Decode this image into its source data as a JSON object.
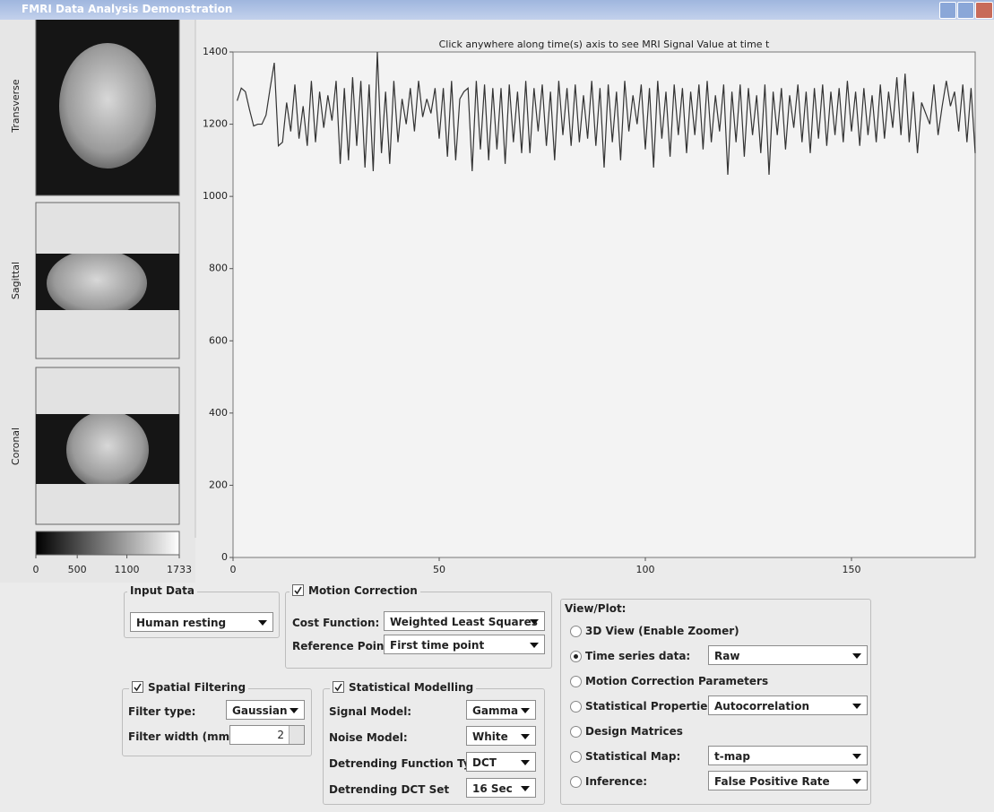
{
  "window": {
    "title": "FMRI Data Analysis Demonstration"
  },
  "views": [
    "Transverse",
    "Sagittal",
    "Coronal"
  ],
  "colorbar": {
    "lim": [
      0,
      1733
    ],
    "ticks": [
      0,
      500,
      1100,
      1733
    ]
  },
  "chart_data": {
    "type": "line",
    "title": "Click anywhere along time(s) axis to see MRI Signal Value at time t",
    "color": "#333333",
    "xlim": [
      0,
      180
    ],
    "xticks": [
      0,
      50,
      100,
      150
    ],
    "ylim": [
      0,
      1400
    ],
    "yticks": [
      0,
      200,
      400,
      600,
      800,
      1000,
      1200,
      1400
    ],
    "grid": false,
    "x": [
      1,
      2,
      3,
      4,
      5,
      6,
      7,
      8,
      9,
      10,
      11,
      12,
      13,
      14,
      15,
      16,
      17,
      18,
      19,
      20,
      21,
      22,
      23,
      24,
      25,
      26,
      27,
      28,
      29,
      30,
      31,
      32,
      33,
      34,
      35,
      36,
      37,
      38,
      39,
      40,
      41,
      42,
      43,
      44,
      45,
      46,
      47,
      48,
      49,
      50,
      51,
      52,
      53,
      54,
      55,
      56,
      57,
      58,
      59,
      60,
      61,
      62,
      63,
      64,
      65,
      66,
      67,
      68,
      69,
      70,
      71,
      72,
      73,
      74,
      75,
      76,
      77,
      78,
      79,
      80,
      81,
      82,
      83,
      84,
      85,
      86,
      87,
      88,
      89,
      90,
      91,
      92,
      93,
      94,
      95,
      96,
      97,
      98,
      99,
      100,
      101,
      102,
      103,
      104,
      105,
      106,
      107,
      108,
      109,
      110,
      111,
      112,
      113,
      114,
      115,
      116,
      117,
      118,
      119,
      120,
      121,
      122,
      123,
      124,
      125,
      126,
      127,
      128,
      129,
      130,
      131,
      132,
      133,
      134,
      135,
      136,
      137,
      138,
      139,
      140,
      141,
      142,
      143,
      144,
      145,
      146,
      147,
      148,
      149,
      150,
      151,
      152,
      153,
      154,
      155,
      156,
      157,
      158,
      159,
      160,
      161,
      162,
      163,
      164,
      165,
      166,
      167,
      168,
      169,
      170,
      171,
      172,
      173,
      174,
      175,
      176,
      177,
      178,
      179,
      180
    ],
    "values": [
      1265,
      1300,
      1290,
      1240,
      1195,
      1200,
      1200,
      1225,
      1300,
      1370,
      1140,
      1150,
      1260,
      1180,
      1310,
      1160,
      1250,
      1140,
      1320,
      1150,
      1290,
      1190,
      1280,
      1210,
      1320,
      1090,
      1300,
      1100,
      1330,
      1140,
      1320,
      1080,
      1310,
      1070,
      1400,
      1120,
      1290,
      1090,
      1320,
      1150,
      1270,
      1200,
      1300,
      1180,
      1320,
      1220,
      1270,
      1230,
      1300,
      1160,
      1300,
      1110,
      1320,
      1100,
      1270,
      1290,
      1300,
      1070,
      1320,
      1130,
      1310,
      1100,
      1300,
      1130,
      1300,
      1090,
      1310,
      1150,
      1290,
      1120,
      1320,
      1120,
      1300,
      1180,
      1310,
      1140,
      1290,
      1100,
      1320,
      1170,
      1300,
      1140,
      1310,
      1150,
      1280,
      1160,
      1320,
      1140,
      1300,
      1080,
      1310,
      1150,
      1290,
      1100,
      1320,
      1180,
      1280,
      1200,
      1310,
      1130,
      1300,
      1080,
      1320,
      1160,
      1290,
      1110,
      1310,
      1170,
      1300,
      1120,
      1290,
      1170,
      1310,
      1130,
      1320,
      1150,
      1280,
      1180,
      1310,
      1060,
      1290,
      1150,
      1310,
      1110,
      1300,
      1170,
      1280,
      1120,
      1310,
      1060,
      1290,
      1170,
      1300,
      1130,
      1280,
      1190,
      1310,
      1150,
      1290,
      1120,
      1300,
      1160,
      1310,
      1140,
      1290,
      1170,
      1300,
      1150,
      1320,
      1180,
      1290,
      1140,
      1300,
      1170,
      1280,
      1150,
      1310,
      1160,
      1290,
      1190,
      1330,
      1170,
      1340,
      1150,
      1290,
      1120,
      1260,
      1230,
      1200,
      1310,
      1170,
      1250,
      1320,
      1250,
      1290,
      1180,
      1310,
      1150,
      1300,
      1120
    ]
  },
  "input_data": {
    "title": "Input Data",
    "value": "Human resting"
  },
  "motion_correction": {
    "title": "Motion Correction",
    "cost_function_label": "Cost Function:",
    "cost_function": "Weighted Least Squares",
    "reference_point_label": "Reference Point:",
    "reference_point": "First time point"
  },
  "spatial_filtering": {
    "title": "Spatial Filtering",
    "filter_type_label": "Filter type:",
    "filter_type": "Gaussian",
    "filter_width_label": "Filter width (mm):",
    "filter_width": 2
  },
  "statistical_modelling": {
    "title": "Statistical Modelling",
    "rows": [
      {
        "label": "Signal Model:",
        "value": "Gamma"
      },
      {
        "label": "Noise Model:",
        "value": "White"
      },
      {
        "label": "Detrending Function Type",
        "value": "DCT"
      },
      {
        "label": "Detrending DCT Set",
        "value": "16 Sec"
      }
    ]
  },
  "view_plot": {
    "title": "View/Plot:",
    "selected": 1,
    "options": [
      {
        "label": "3D View (Enable Zoomer)"
      },
      {
        "label": "Time series data:",
        "value": "Raw"
      },
      {
        "label": "Motion Correction Parameters"
      },
      {
        "label": "Statistical Properties:",
        "value": "Autocorrelation"
      },
      {
        "label": "Design Matrices"
      },
      {
        "label": "Statistical Map:",
        "value": "t-map"
      },
      {
        "label": "Inference:",
        "value": "False Positive Rate"
      }
    ]
  }
}
